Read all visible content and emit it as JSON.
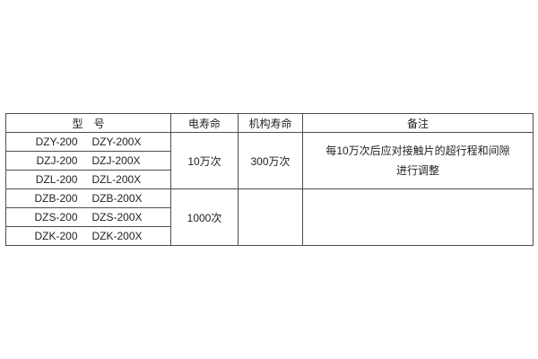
{
  "page": {
    "background": "#ffffff"
  },
  "table": {
    "headers": {
      "model": "型　号",
      "electrical_life": "电寿命",
      "mechanism_life": "机构寿命",
      "remarks": "备注"
    },
    "model_rows": [
      {
        "m1": "DZY-200",
        "m2": "DZY-200X"
      },
      {
        "m1": "DZJ-200",
        "m2": "DZJ-200X"
      },
      {
        "m1": "DZL-200",
        "m2": "DZL-200X"
      },
      {
        "m1": "DZB-200",
        "m2": "DZB-200X"
      },
      {
        "m1": "DZS-200",
        "m2": "DZS-200X"
      },
      {
        "m1": "DZK-200",
        "m2": "DZK-200X"
      }
    ],
    "electrical_life_values": [
      "10万次",
      "1000次"
    ],
    "mechanism_life_values": [
      "300万次",
      ""
    ],
    "remarks_values": [
      {
        "line1": "每10万次后应对接触片的超行程和间隙",
        "line2": "进行调整"
      },
      {
        "line1": "",
        "line2": ""
      }
    ],
    "colors": {
      "border": "#4d4d4d",
      "text": "#1f1f1f",
      "background": "#ffffff"
    }
  }
}
